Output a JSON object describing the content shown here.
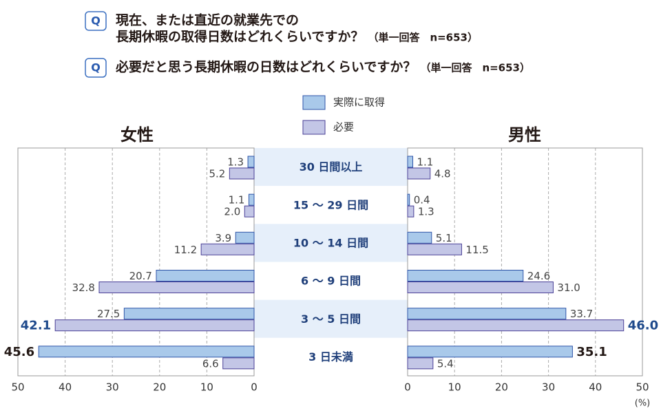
{
  "chart_data": {
    "type": "butterfly",
    "questions": [
      {
        "badge": "Q",
        "lines": [
          "現在、または直近の就業先での",
          "長期休暇の取得日数はどれくらいですか？"
        ],
        "note": "（単一回答　n=653）"
      },
      {
        "badge": "Q",
        "lines": [
          "必要だと思う長期休暇の日数はどれくらいですか？"
        ],
        "note": "（単一回答　n=653）"
      }
    ],
    "categories": [
      "30 日間以上",
      "15 ～ 29 日間",
      "10 ～ 14 日間",
      "6 ～ 9 日間",
      "3 ～ 5 日間",
      "3 日未満"
    ],
    "series": [
      {
        "name": "実際に取得",
        "color": "#a9c9ea",
        "stroke": "#2e54a8",
        "highlight": "#231815"
      },
      {
        "name": "必要",
        "color": "#c3c6e6",
        "stroke": "#4a3f96",
        "highlight": "#1f4a8c"
      }
    ],
    "panels": [
      {
        "title": "女性",
        "side": "left",
        "xlim": [
          0,
          50
        ],
        "xticks": [
          0,
          10,
          20,
          30,
          40,
          50
        ],
        "values": [
          [
            1.3,
            1.1,
            3.9,
            20.7,
            27.5,
            45.6
          ],
          [
            5.2,
            2.0,
            11.2,
            32.8,
            42.1,
            6.6
          ]
        ],
        "value_labels": [
          [
            "1.3",
            "1.1",
            "3.9",
            "20.7",
            "27.5",
            "45.6"
          ],
          [
            "5.2",
            "2.0",
            "11.2",
            "32.8",
            "42.1",
            "6.6"
          ]
        ]
      },
      {
        "title": "男性",
        "side": "right",
        "xlim": [
          0,
          50
        ],
        "xticks": [
          0,
          10,
          20,
          30,
          40,
          50
        ],
        "values": [
          [
            1.1,
            0.4,
            5.1,
            24.6,
            33.7,
            35.1
          ],
          [
            4.8,
            1.3,
            11.5,
            31.0,
            46.0,
            5.4
          ]
        ],
        "value_labels": [
          [
            "1.1",
            "0.4",
            "5.1",
            "24.6",
            "33.7",
            "35.1"
          ],
          [
            "4.8",
            "1.3",
            "11.5",
            "31.0",
            "46.0",
            "5.4"
          ]
        ]
      }
    ],
    "x_unit": "(%)",
    "grid": true
  }
}
